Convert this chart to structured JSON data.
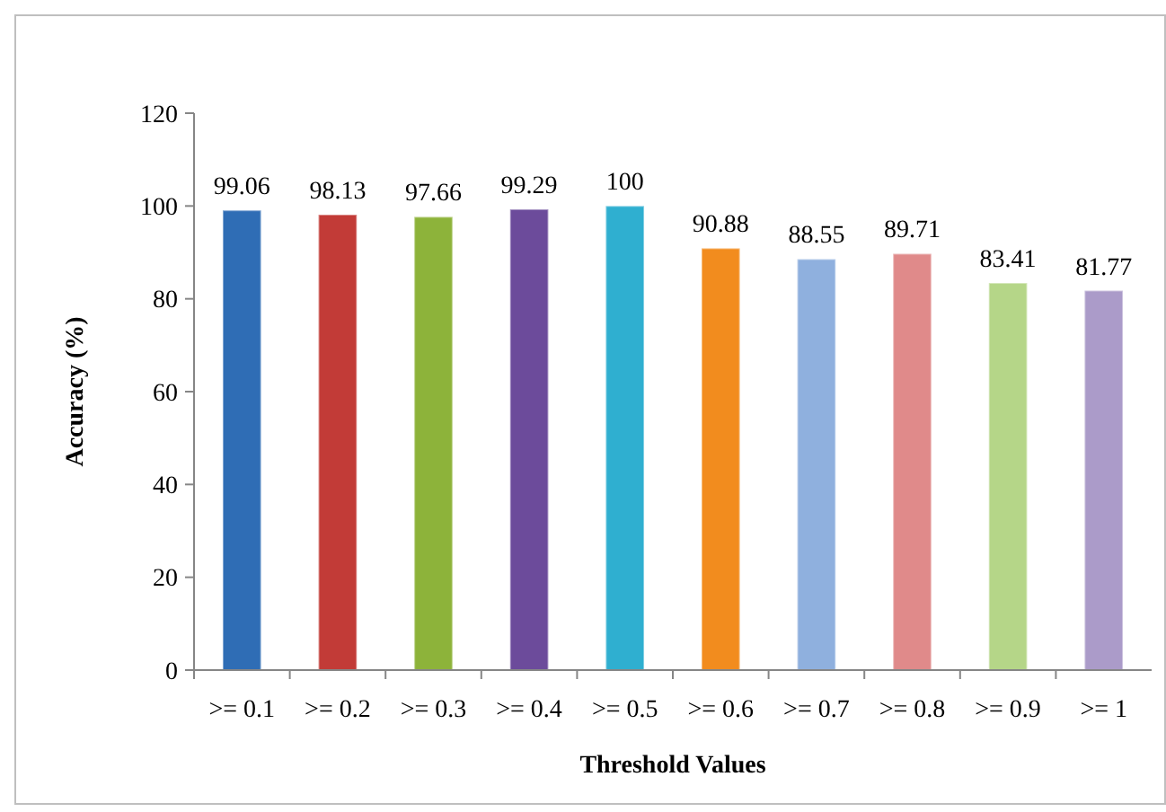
{
  "chart_data": {
    "type": "bar",
    "xlabel": "Threshold Values",
    "ylabel": "Accuracy (%)",
    "categories": [
      ">= 0.1",
      ">= 0.2",
      ">= 0.3",
      ">= 0.4",
      ">= 0.5",
      ">= 0.6",
      ">= 0.7",
      ">= 0.8",
      ">= 0.9",
      ">= 1"
    ],
    "values": [
      99.06,
      98.13,
      97.66,
      99.29,
      100,
      90.88,
      88.55,
      89.71,
      83.41,
      81.77
    ],
    "colors": [
      "#2f6db5",
      "#c23b37",
      "#8db33a",
      "#6c4b9b",
      "#2fafd0",
      "#f28c1e",
      "#8fb0de",
      "#e08a8a",
      "#b5d688",
      "#ab9bc9"
    ],
    "ylim": [
      0,
      120
    ],
    "yticks": [
      0,
      20,
      40,
      60,
      80,
      100,
      120
    ],
    "data_labels": true,
    "grid": false
  }
}
